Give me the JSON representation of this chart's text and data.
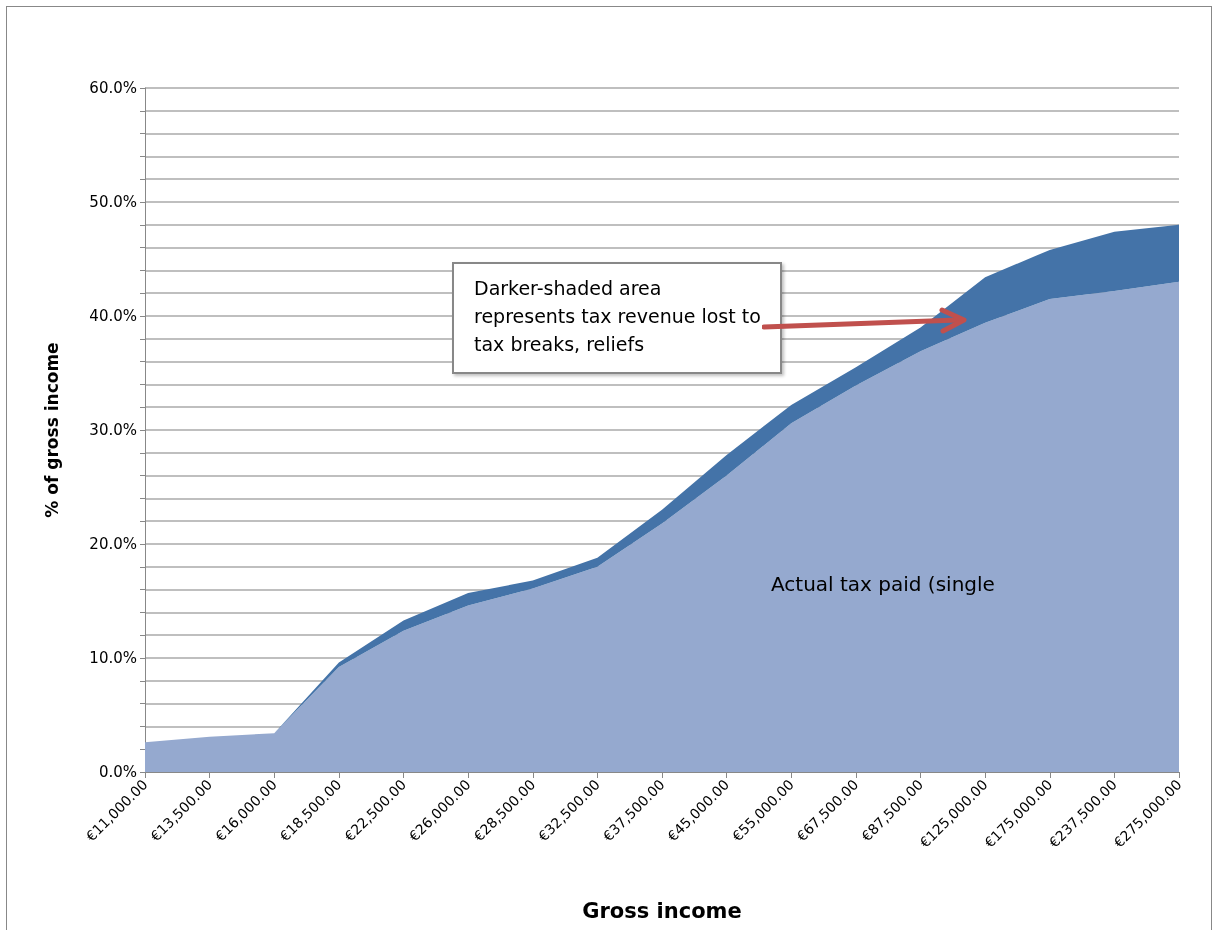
{
  "chart_data": {
    "type": "area",
    "stacked": true,
    "xlabel": "Gross income",
    "ylabel": "% of gross income",
    "categories": [
      "€11,000.00",
      "€13,500.00",
      "€16,000.00",
      "€18,500.00",
      "€22,500.00",
      "€26,000.00",
      "€28,500.00",
      "€32,500.00",
      "€37,500.00",
      "€45,000.00",
      "€55,000.00",
      "€67,500.00",
      "€87,500.00",
      "€125,000.00",
      "€175,000.00",
      "€237,500.00",
      "€275,000.00"
    ],
    "series": [
      {
        "color": "#95a9cf",
        "values": [
          2.6,
          3.1,
          3.4,
          9.2,
          12.4,
          14.6,
          16.1,
          18.0,
          21.8,
          26.0,
          30.6,
          33.9,
          36.9,
          39.4,
          41.5,
          42.2,
          43.0
        ]
      },
      {
        "color": "#4473a8",
        "values": [
          0,
          0,
          0,
          0.4,
          0.9,
          1.1,
          0.7,
          0.8,
          1.2,
          1.8,
          1.6,
          1.6,
          2.1,
          4.0,
          4.3,
          5.2,
          5.0
        ]
      }
    ],
    "ylim": [
      0,
      60
    ],
    "yticks": [
      {
        "value": 0,
        "label": "0.0%"
      },
      {
        "value": 2,
        "label": null
      },
      {
        "value": 4,
        "label": null
      },
      {
        "value": 6,
        "label": null
      },
      {
        "value": 8,
        "label": null
      },
      {
        "value": 10,
        "label": "10.0%"
      },
      {
        "value": 12,
        "label": null
      },
      {
        "value": 14,
        "label": null
      },
      {
        "value": 16,
        "label": null
      },
      {
        "value": 18,
        "label": null
      },
      {
        "value": 20,
        "label": "20.0%"
      },
      {
        "value": 22,
        "label": null
      },
      {
        "value": 24,
        "label": null
      },
      {
        "value": 26,
        "label": null
      },
      {
        "value": 28,
        "label": null
      },
      {
        "value": 30,
        "label": "30.0%"
      },
      {
        "value": 32,
        "label": null
      },
      {
        "value": 34,
        "label": null
      },
      {
        "value": 36,
        "label": null
      },
      {
        "value": 38,
        "label": null
      },
      {
        "value": 40,
        "label": "40.0%"
      },
      {
        "value": 42,
        "label": null
      },
      {
        "value": 44,
        "label": null
      },
      {
        "value": 46,
        "label": null
      },
      {
        "value": 48,
        "label": null
      },
      {
        "value": 50,
        "label": "50.0%"
      },
      {
        "value": 52,
        "label": null
      },
      {
        "value": 54,
        "label": null
      },
      {
        "value": 56,
        "label": null
      },
      {
        "value": 58,
        "label": null
      },
      {
        "value": 60,
        "label": "60.0%"
      }
    ],
    "grid": "y",
    "marker": "none",
    "annotations": [
      "Darker-shaded area represents tax revenue lost to tax breaks, reliefs",
      "Actual tax paid (single"
    ]
  }
}
